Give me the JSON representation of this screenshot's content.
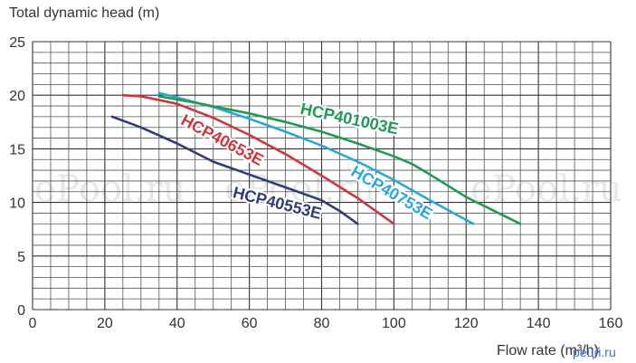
{
  "chart_data": {
    "type": "line",
    "ylabel": "Total dynamic head (m)",
    "xlabel": "Flow rate (m³/h)",
    "xlim": [
      0,
      160
    ],
    "ylim": [
      0,
      25
    ],
    "x_ticks": [
      0,
      20,
      40,
      60,
      80,
      100,
      120,
      140,
      160
    ],
    "y_ticks": [
      0,
      5,
      10,
      15,
      20,
      25
    ],
    "grid": true,
    "series": [
      {
        "name": "HCP40553E",
        "color": "#2f3d7a",
        "points": [
          [
            22,
            18
          ],
          [
            30,
            17
          ],
          [
            40,
            15.5
          ],
          [
            50,
            13.8
          ],
          [
            60,
            12.6
          ],
          [
            70,
            11.4
          ],
          [
            80,
            10.2
          ],
          [
            85,
            9.2
          ],
          [
            90,
            8
          ]
        ]
      },
      {
        "name": "HCP40653E",
        "color": "#d0353f",
        "points": [
          [
            25,
            20
          ],
          [
            30,
            19.9
          ],
          [
            40,
            19.2
          ],
          [
            50,
            17.9
          ],
          [
            60,
            16.3
          ],
          [
            70,
            14.5
          ],
          [
            80,
            12.5
          ],
          [
            90,
            10.4
          ],
          [
            100,
            8
          ]
        ]
      },
      {
        "name": "HCP40753E",
        "color": "#2aa7d6",
        "points": [
          [
            35,
            20.2
          ],
          [
            40,
            19.8
          ],
          [
            50,
            18.9
          ],
          [
            60,
            17.8
          ],
          [
            70,
            16.6
          ],
          [
            80,
            15.3
          ],
          [
            90,
            13.8
          ],
          [
            100,
            12.1
          ],
          [
            110,
            10.2
          ],
          [
            122,
            8
          ]
        ]
      },
      {
        "name": "HCP401003E",
        "color": "#1f9a55",
        "points": [
          [
            35,
            19.9
          ],
          [
            45,
            19.3
          ],
          [
            60,
            18.3
          ],
          [
            70,
            17.5
          ],
          [
            80,
            16.6
          ],
          [
            90,
            15.5
          ],
          [
            100,
            14.3
          ],
          [
            105,
            13.6
          ],
          [
            110,
            12.6
          ],
          [
            120,
            10.5
          ],
          [
            135,
            8
          ]
        ]
      }
    ]
  },
  "watermark": {
    "text": "ePool.ru",
    "unit_logo_text": "рецй.ru"
  }
}
